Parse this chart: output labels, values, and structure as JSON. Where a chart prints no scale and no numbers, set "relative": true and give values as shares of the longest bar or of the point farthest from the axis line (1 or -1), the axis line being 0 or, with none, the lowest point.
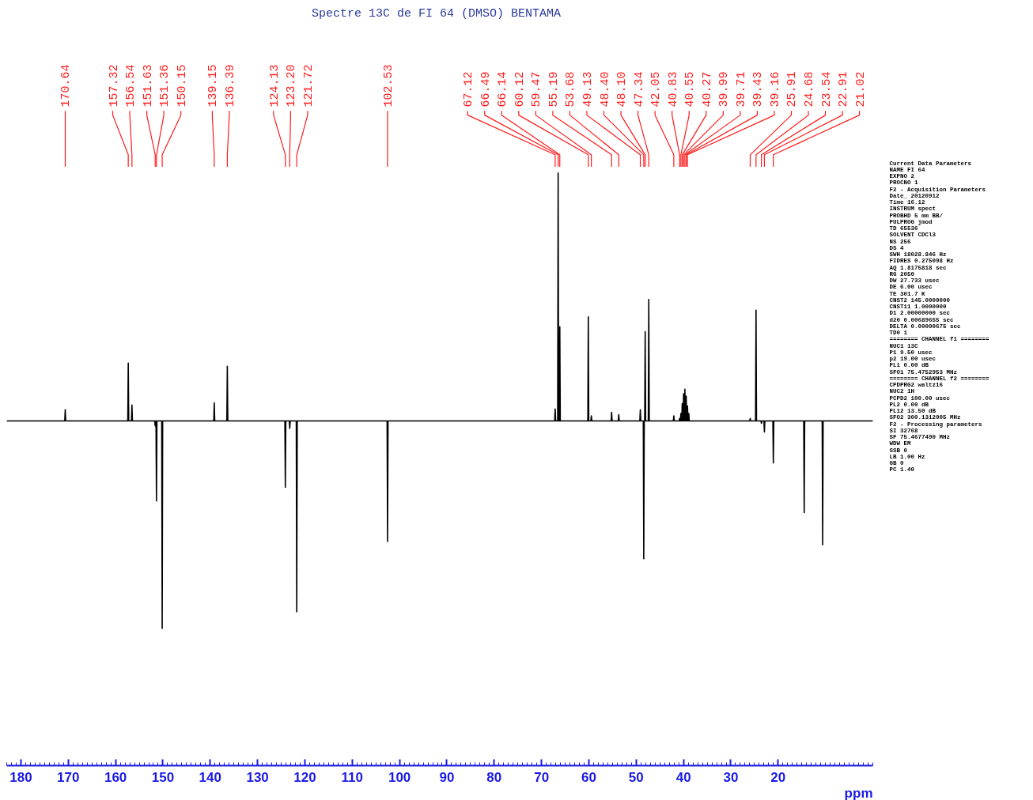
{
  "chart_data": {
    "type": "line",
    "title": "Spectre 13C  de FI 64 (DMSO) BENTAMA",
    "xlabel": "ppm",
    "relative": true,
    "xlim": [
      183,
      0
    ],
    "xticks": [
      180,
      170,
      160,
      150,
      140,
      130,
      120,
      110,
      100,
      90,
      80,
      70,
      60,
      50,
      40,
      30,
      20
    ],
    "x": [
      183,
      170.74,
      170.64,
      170.54,
      157.42,
      157.32,
      157.22,
      156.64,
      156.54,
      156.44,
      151.73,
      151.63,
      151.53,
      151.46,
      151.36,
      151.26,
      150.25,
      150.15,
      150.05,
      139.25,
      139.15,
      139.05,
      136.49,
      136.39,
      136.29,
      124.23,
      124.13,
      124.03,
      123.3,
      123.2,
      123.1,
      121.82,
      121.72,
      121.62,
      102.63,
      102.53,
      102.43,
      67.22,
      67.12,
      67.02,
      66.59,
      66.49,
      66.39,
      66.24,
      66.14,
      66.04,
      60.22,
      60.12,
      60.02,
      59.57,
      59.47,
      59.37,
      55.29,
      55.19,
      55.09,
      53.78,
      53.68,
      53.58,
      49.23,
      49.13,
      49.03,
      48.5,
      48.4,
      48.3,
      48.2,
      48.1,
      48.0,
      47.44,
      47.34,
      47.24,
      42.15,
      42.05,
      41.95,
      40.93,
      40.83,
      40.73,
      40.65,
      40.55,
      40.45,
      40.37,
      40.27,
      40.17,
      40.09,
      39.99,
      39.89,
      39.81,
      39.71,
      39.61,
      39.53,
      39.43,
      39.33,
      39.26,
      39.16,
      39.06,
      38.98,
      38.88,
      38.78,
      26.01,
      25.91,
      25.81,
      24.78,
      24.68,
      24.58,
      23.64,
      23.54,
      23.44,
      23.01,
      22.91,
      22.81,
      21.12,
      21.02,
      20.92,
      14.6,
      14.5,
      14.4,
      10.7,
      10.6,
      10.5,
      0
    ],
    "series": [
      {
        "color": "#000000",
        "values": [
          0,
          0,
          0.045,
          0,
          0,
          0.233,
          0,
          0,
          0.064,
          0,
          0,
          -0.02,
          0,
          0,
          -0.323,
          0,
          0,
          -0.837,
          0,
          0,
          0.073,
          0,
          0,
          0.22,
          0,
          0,
          -0.268,
          0,
          0,
          -0.03,
          0,
          0,
          -0.77,
          0,
          0,
          -0.486,
          0,
          0,
          0.048,
          0,
          0,
          1,
          0,
          0,
          0.38,
          0,
          0,
          0.42,
          0,
          0,
          0.02,
          0,
          0,
          0.035,
          0,
          0,
          0.025,
          0,
          0,
          0.045,
          0,
          0,
          -0.556,
          0,
          0,
          0.36,
          0,
          0,
          0.49,
          0,
          0,
          0.02,
          0,
          0,
          0.01,
          0,
          0,
          0.03,
          0,
          0,
          0.07,
          0,
          0,
          0.11,
          0,
          0,
          0.128,
          0,
          0,
          0.1,
          0,
          0,
          0.06,
          0,
          0,
          0.03,
          0,
          0,
          0.01,
          0,
          0,
          0.447,
          0,
          0,
          -0.01,
          0,
          0,
          -0.045,
          0,
          0,
          -0.17,
          0,
          0,
          -0.37,
          0,
          0,
          -0.5,
          0,
          0
        ]
      }
    ],
    "annotations": [
      {
        "text": "170.64",
        "x": 170.64
      },
      {
        "text": "157.32",
        "x": 157.32
      },
      {
        "text": "156.54",
        "x": 156.54
      },
      {
        "text": "151.63",
        "x": 151.63
      },
      {
        "text": "151.36",
        "x": 151.36
      },
      {
        "text": "150.15",
        "x": 150.15
      },
      {
        "text": "139.15",
        "x": 139.15
      },
      {
        "text": "136.39",
        "x": 136.39
      },
      {
        "text": "124.13",
        "x": 124.13
      },
      {
        "text": "123.20",
        "x": 123.2
      },
      {
        "text": "121.72",
        "x": 121.72
      },
      {
        "text": "102.53",
        "x": 102.53
      },
      {
        "text": "67.12",
        "x": 67.12
      },
      {
        "text": "66.49",
        "x": 66.49
      },
      {
        "text": "66.14",
        "x": 66.14
      },
      {
        "text": "60.12",
        "x": 60.12
      },
      {
        "text": "59.47",
        "x": 59.47
      },
      {
        "text": "55.19",
        "x": 55.19
      },
      {
        "text": "53.68",
        "x": 53.68
      },
      {
        "text": "49.13",
        "x": 49.13
      },
      {
        "text": "48.40",
        "x": 48.4
      },
      {
        "text": "48.10",
        "x": 48.1
      },
      {
        "text": "47.34",
        "x": 47.34
      },
      {
        "text": "42.05",
        "x": 42.05
      },
      {
        "text": "40.83",
        "x": 40.83
      },
      {
        "text": "40.55",
        "x": 40.55
      },
      {
        "text": "40.27",
        "x": 40.27
      },
      {
        "text": "39.99",
        "x": 39.99
      },
      {
        "text": "39.71",
        "x": 39.71
      },
      {
        "text": "39.43",
        "x": 39.43
      },
      {
        "text": "39.16",
        "x": 39.16
      },
      {
        "text": "25.91",
        "x": 25.91
      },
      {
        "text": "24.68",
        "x": 24.68
      },
      {
        "text": "23.54",
        "x": 23.54
      },
      {
        "text": "22.91",
        "x": 22.91
      },
      {
        "text": "21.02",
        "x": 21.02
      },
      "Current Data Parameters",
      "NAME FI 64",
      "EXPNO 2",
      "PROCNO 1",
      "F2 - Acquisition Parameters",
      "Date_ 20120912",
      "Time 16.12",
      "INSTRUM spect",
      "PROBHD 5 mm BB/",
      "PULPROG jmod",
      "TD 65536",
      "SOLVENT CDCl3",
      "NS 256",
      "DS 4",
      "SWH 18028.846 Hz",
      "FIDRES 0.275098 Hz",
      "AQ 1.8175818 sec",
      "RG 2050",
      "DW 27.733 usec",
      "DE 6.00 usec",
      "TE 301.7 K",
      "CNST2 145.0000000",
      "CNST11 1.0000000",
      "D1 2.00000000 sec",
      "d20 0.00689655 sec",
      "DELTA 0.00000675 sec",
      "TD0 1",
      "======== CHANNEL f1 ========",
      "NUC1 13C",
      "P1 9.50 usec",
      "p2 19.00 usec",
      "PL1 0.00 dB",
      "SFO1 75.4752953 MHz",
      "======== CHANNEL f2 ========",
      "CPDPRG2 waltz16",
      "NUC2 1H",
      "PCPD2 100.00 usec",
      "PL2 0.00 dB",
      "PL12 13.50 dB",
      "SFO2 300.1312005 MHz",
      "F2 - Processing parameters",
      "SI 32768",
      "SF 75.4677490 MHz",
      "WDW EM",
      "SSB 0",
      "LB 1.00 Hz",
      "GB 0",
      "PC 1.40"
    ]
  }
}
